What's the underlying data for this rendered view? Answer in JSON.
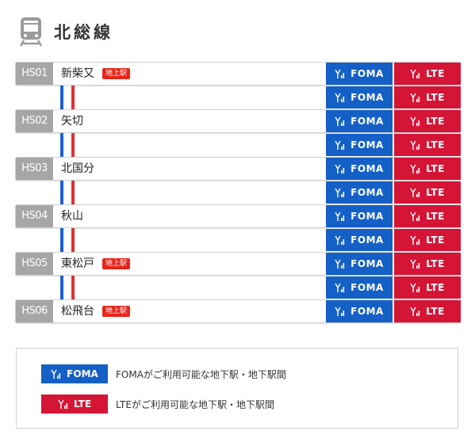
{
  "header": {
    "title": "北総線",
    "icon": "train-icon"
  },
  "stations": [
    {
      "code": "HS01",
      "name": "新柴又",
      "badge": "地上駅"
    },
    {
      "code": "HS02",
      "name": "矢切",
      "badge": ""
    },
    {
      "code": "HS03",
      "name": "北国分",
      "badge": ""
    },
    {
      "code": "HS04",
      "name": "秋山",
      "badge": ""
    },
    {
      "code": "HS05",
      "name": "東松戸",
      "badge": "地上駅"
    },
    {
      "code": "HS06",
      "name": "松飛台",
      "badge": "地上駅"
    }
  ],
  "signals": {
    "foma": "FOMA",
    "lte": "LTE",
    "icon": "signal-antenna-icon"
  },
  "colors": {
    "foma": "#1560c6",
    "lte": "#d41536",
    "code_bg": "#a6a6a6",
    "badge": "#e8251a"
  },
  "legend": {
    "foma": {
      "label": "FOMA",
      "text": "FOMAがご利用可能な地下駅・地下駅間"
    },
    "lte": {
      "label": "LTE",
      "text": "LTEがご利用可能な地下駅・地下駅間"
    }
  }
}
